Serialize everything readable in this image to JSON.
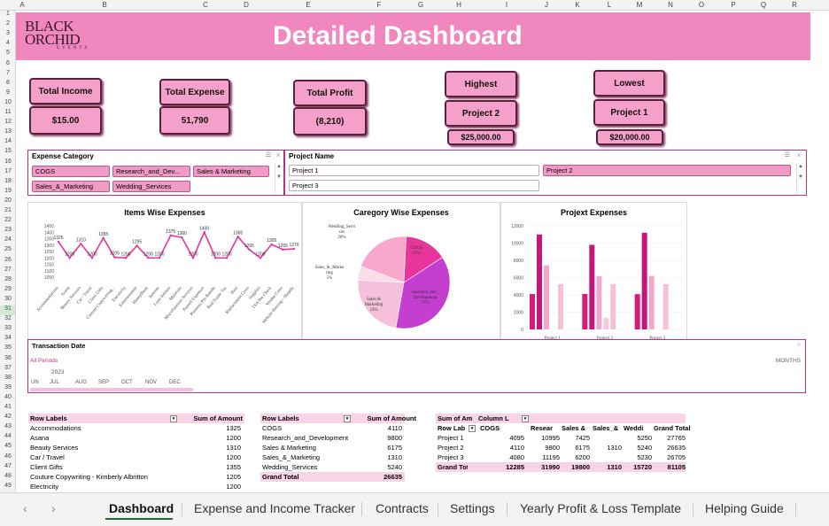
{
  "columns": [
    "A",
    "B",
    "C",
    "D",
    "E",
    "F",
    "G",
    "H",
    "I",
    "J",
    "K",
    "L",
    "M",
    "N",
    "O",
    "P",
    "Q",
    "R"
  ],
  "rows": [
    "1",
    "2",
    "3",
    "4",
    "5",
    "6",
    "7",
    "8",
    "9",
    "10",
    "11",
    "12",
    "13",
    "14",
    "15",
    "16",
    "17",
    "18",
    "19",
    "20",
    "21",
    "22",
    "23",
    "24",
    "25",
    "26",
    "27",
    "28",
    "29",
    "30",
    "31",
    "32",
    "33",
    "34",
    "35",
    "36",
    "37",
    "38",
    "39",
    "40",
    "41",
    "42",
    "43",
    "44",
    "45",
    "46",
    "47",
    "48",
    "49"
  ],
  "selected_row": "31",
  "logo": {
    "line1": "BLACK",
    "line2": "ORCHID",
    "line3": "EVENTS"
  },
  "title": "Detailed Dashboard",
  "kpis": {
    "total_income_label": "Total Income",
    "total_income_value": "$15.00",
    "total_expense_label": "Total Expense",
    "total_expense_value": "51,790",
    "total_profit_label": "Total Profit",
    "total_profit_value": "(8,210)",
    "highest_label": "Highest",
    "highest_project": "Project 2",
    "highest_value": "$25,000.00",
    "lowest_label": "Lowest",
    "lowest_project": "Project 1",
    "lowest_value": "$20,000.00"
  },
  "slicer_expense": {
    "title": "Expense Category",
    "items": [
      "COGS",
      "Research_and_Dev...",
      "Sales & Marketing",
      "Sales_&_Marketing",
      "Wedding_Services"
    ]
  },
  "slicer_project": {
    "title": "Project Name",
    "items": [
      "Project 1",
      "Project 2",
      "Project 3"
    ]
  },
  "items_chart": {
    "title": "Items Wise Expenses",
    "y_ticks": [
      "1450",
      "1400",
      "1350",
      "1300",
      "1250",
      "1200",
      "1150",
      "1100",
      "1050"
    ],
    "categories": [
      "Accommodations",
      "Asana",
      "Beauty Services",
      "Car / Travel",
      "Client Gifts",
      "Couture Copywriting...",
      "Electricity",
      "Entertainment",
      "HoneyBook",
      "Internet",
      "Loan Interest",
      "Materials",
      "Miscellaneous Services",
      "Payroll Expenses",
      "Pinterest Pro Bundle",
      "Real Estate Tax",
      "Rent",
      "Replacement Costs",
      "Supplies",
      "TSA Pre Check",
      "Vendor Costs",
      "Website Hosting - Shopify"
    ],
    "values": [
      1325,
      1200,
      1310,
      1200,
      1355,
      1205,
      1200,
      1295,
      1200,
      1200,
      1375,
      1360,
      1200,
      1400,
      1200,
      1200,
      1365,
      1265,
      1200,
      1305,
      1265,
      1270
    ],
    "labels": [
      "1325",
      "1200",
      "1310",
      "1200",
      "1355",
      "1205",
      "1200",
      "1295",
      "1200",
      "1200",
      "1375",
      "1360",
      "1200",
      "1400",
      "1200",
      "1200",
      "1365",
      "1265",
      "1200",
      "1305",
      "1265",
      "1270"
    ]
  },
  "category_chart": {
    "title": "Caregory Wise Expenses",
    "slices": [
      {
        "name": "COGS",
        "pct": 15,
        "label1": "COGS",
        "label2": "15%",
        "color": "#e8359c"
      },
      {
        "name": "Research_and_Development",
        "pct": 37,
        "label1": "Research_and_",
        "label2": "Development",
        "label3": "37%",
        "color": "#c43fd0"
      },
      {
        "name": "Sales & Marketing",
        "pct": 23,
        "label1": "Sales &",
        "label2": "Marketing",
        "label3": "23%",
        "color": "#f4c0da"
      },
      {
        "name": "Sales_&_Marketing",
        "pct": 5,
        "label1": "Sales_&_Marke",
        "label2": "ting",
        "label3": "5%",
        "color": "#fbdde9"
      },
      {
        "name": "Wedding_Services",
        "pct": 20,
        "label1": "Wedding_Servi",
        "label2": "ces",
        "label3": "20%",
        "color": "#f7a8cc"
      }
    ]
  },
  "project_chart": {
    "title": "Projext Expenses",
    "y_ticks": [
      "12000",
      "10000",
      "8000",
      "6000",
      "4000",
      "2000",
      "0"
    ],
    "categories": [
      "Project 1",
      "Project 2",
      "Project 3"
    ],
    "series": [
      {
        "values": [
          4095,
          4110,
          4080
        ],
        "color": "#d81b7a"
      },
      {
        "values": [
          10995,
          9800,
          11195
        ],
        "color": "#c2187a"
      },
      {
        "values": [
          7425,
          6175,
          6200
        ],
        "color": "#f2a8cc"
      },
      {
        "values": [
          0,
          1310,
          0
        ],
        "color": "#f7c9dd"
      },
      {
        "values": [
          5250,
          5240,
          5230
        ],
        "color": "#f5c0d8"
      }
    ],
    "ymax": 12000
  },
  "timeline": {
    "title": "Transaction Date",
    "all_periods": "All Periods",
    "level": "MONTHS",
    "year": "2023",
    "months": [
      "UN",
      "JUL",
      "AUG",
      "SEP",
      "OCT",
      "NOV",
      "DEC"
    ]
  },
  "pivot_items": {
    "headers": [
      "Row Labels",
      "Sum of Amount"
    ],
    "rows": [
      [
        "Accommodations",
        "1325"
      ],
      [
        "Asana",
        "1200"
      ],
      [
        "Beauty Services",
        "1310"
      ],
      [
        "Car / Travel",
        "1200"
      ],
      [
        "Client Gifts",
        "1355"
      ],
      [
        "Couture Copywriting - Kimberly Albritton",
        "1205"
      ],
      [
        "Electricity",
        "1200"
      ]
    ]
  },
  "pivot_category": {
    "headers": [
      "Row Labels",
      "Sum of Amount"
    ],
    "rows": [
      [
        "COGS",
        "4110"
      ],
      [
        "Research_and_Development",
        "9800"
      ],
      [
        "Sales & Marketing",
        "6175"
      ],
      [
        "Sales_&_Marketing",
        "1310"
      ],
      [
        "Wedding_Services",
        "5240"
      ]
    ],
    "total": [
      "Grand Total",
      "26635"
    ]
  },
  "pivot_project": {
    "head1": [
      "Sum of Am",
      "Column L"
    ],
    "headers": [
      "Row Lab",
      "COGS",
      "Resear",
      "Sales &",
      "Sales_&",
      "Weddi",
      "Grand Total"
    ],
    "rows": [
      [
        "Project 1",
        "4095",
        "10995",
        "7425",
        "",
        "5250",
        "27765"
      ],
      [
        "Project 2",
        "4110",
        "9800",
        "6175",
        "1310",
        "5240",
        "26635"
      ],
      [
        "Project 3",
        "4080",
        "11195",
        "6200",
        "",
        "5230",
        "26705"
      ]
    ],
    "total": [
      "Grand Tot",
      "12285",
      "31990",
      "19800",
      "1310",
      "15720",
      "81105"
    ]
  },
  "tabs": [
    "Dashboard",
    "Expense and Income Tracker",
    "Contracts",
    "Settings",
    "Yearly Profit & Loss Template",
    "Helping Guide"
  ],
  "colors": {
    "accent": "#f087be",
    "border": "#c0307f",
    "line": "#e8359c"
  }
}
